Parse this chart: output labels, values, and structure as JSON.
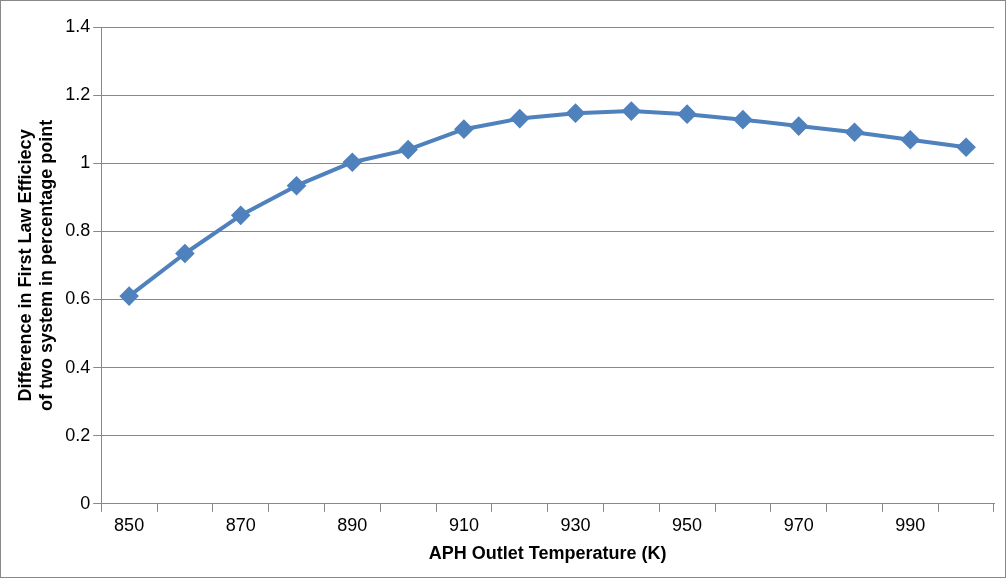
{
  "chart_data": {
    "type": "line",
    "xlabel": "APH Outlet Temperature (K)",
    "ylabel": "Difference in First Law Efficiecy of two system in percentage point",
    "categories": [
      "850",
      null,
      "870",
      null,
      "890",
      null,
      "910",
      null,
      "930",
      null,
      "950",
      null,
      "970",
      null,
      "990",
      null
    ],
    "series": [
      {
        "color": "#4f81bd",
        "values": [
          0.61,
          0.735,
          0.847,
          0.934,
          1.003,
          1.04,
          1.1,
          1.131,
          1.147,
          1.153,
          1.144,
          1.128,
          1.109,
          1.091,
          1.069,
          1.047
        ]
      }
    ],
    "ylim": [
      0,
      1.4
    ],
    "yticks": [
      0,
      0.2,
      0.4,
      0.6,
      0.8,
      1,
      1.2,
      1.4
    ],
    "grid": "y",
    "legend": false,
    "marker": "diamond",
    "line_style": "solid"
  }
}
